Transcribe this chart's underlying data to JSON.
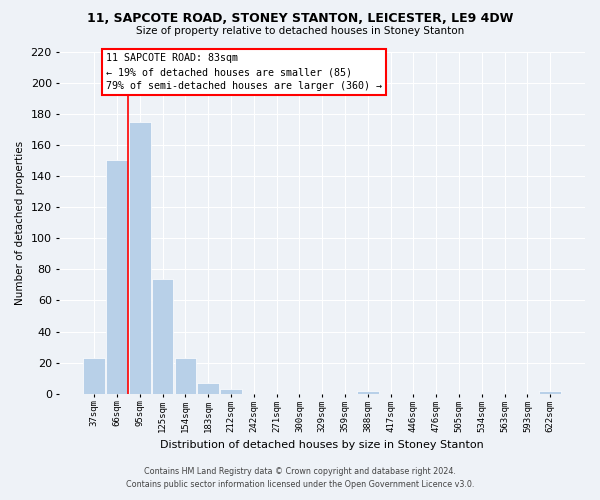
{
  "title": "11, SAPCOTE ROAD, STONEY STANTON, LEICESTER, LE9 4DW",
  "subtitle": "Size of property relative to detached houses in Stoney Stanton",
  "xlabel": "Distribution of detached houses by size in Stoney Stanton",
  "ylabel": "Number of detached properties",
  "bar_labels": [
    "37sqm",
    "66sqm",
    "95sqm",
    "125sqm",
    "154sqm",
    "183sqm",
    "212sqm",
    "242sqm",
    "271sqm",
    "300sqm",
    "329sqm",
    "359sqm",
    "388sqm",
    "417sqm",
    "446sqm",
    "476sqm",
    "505sqm",
    "534sqm",
    "563sqm",
    "593sqm",
    "622sqm"
  ],
  "bar_values": [
    23,
    150,
    175,
    74,
    23,
    7,
    3,
    0,
    0,
    0,
    0,
    0,
    2,
    0,
    0,
    0,
    0,
    0,
    0,
    0,
    2
  ],
  "bar_color": "#b8d0e8",
  "bar_edge_color": "#b8d0e8",
  "ylim": [
    0,
    220
  ],
  "yticks": [
    0,
    20,
    40,
    60,
    80,
    100,
    120,
    140,
    160,
    180,
    200,
    220
  ],
  "red_line_x": 1.5,
  "annotation_line1": "11 SAPCOTE ROAD: 83sqm",
  "annotation_line2": "← 19% of detached houses are smaller (85)",
  "annotation_line3": "79% of semi-detached houses are larger (360) →",
  "footer_line1": "Contains HM Land Registry data © Crown copyright and database right 2024.",
  "footer_line2": "Contains public sector information licensed under the Open Government Licence v3.0.",
  "background_color": "#eef2f7"
}
